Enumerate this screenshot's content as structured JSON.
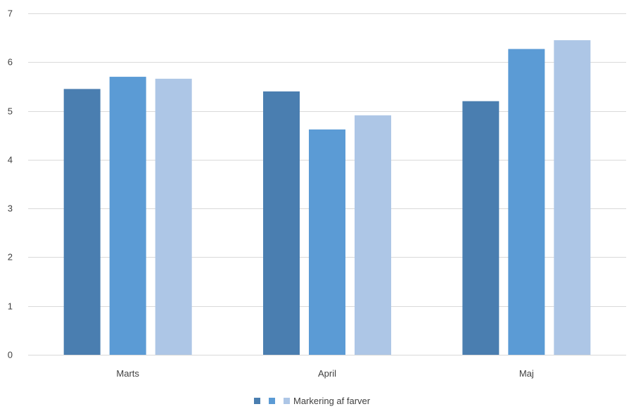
{
  "chart_data": {
    "type": "bar",
    "categories": [
      "Marts",
      "April",
      "Maj"
    ],
    "series": [
      {
        "values": [
          5.45,
          5.4,
          5.2
        ],
        "color": "#4a7eb0"
      },
      {
        "values": [
          5.7,
          4.62,
          6.27
        ],
        "color": "#5b9bd5"
      },
      {
        "name": "Markering af farver",
        "values": [
          5.66,
          4.91,
          6.45
        ],
        "color": "#adc6e6"
      }
    ],
    "ylim": [
      0,
      7
    ],
    "yticks": [
      0,
      1,
      2,
      3,
      4,
      5,
      6,
      7
    ],
    "grid": true,
    "legend_position": "bottom"
  }
}
